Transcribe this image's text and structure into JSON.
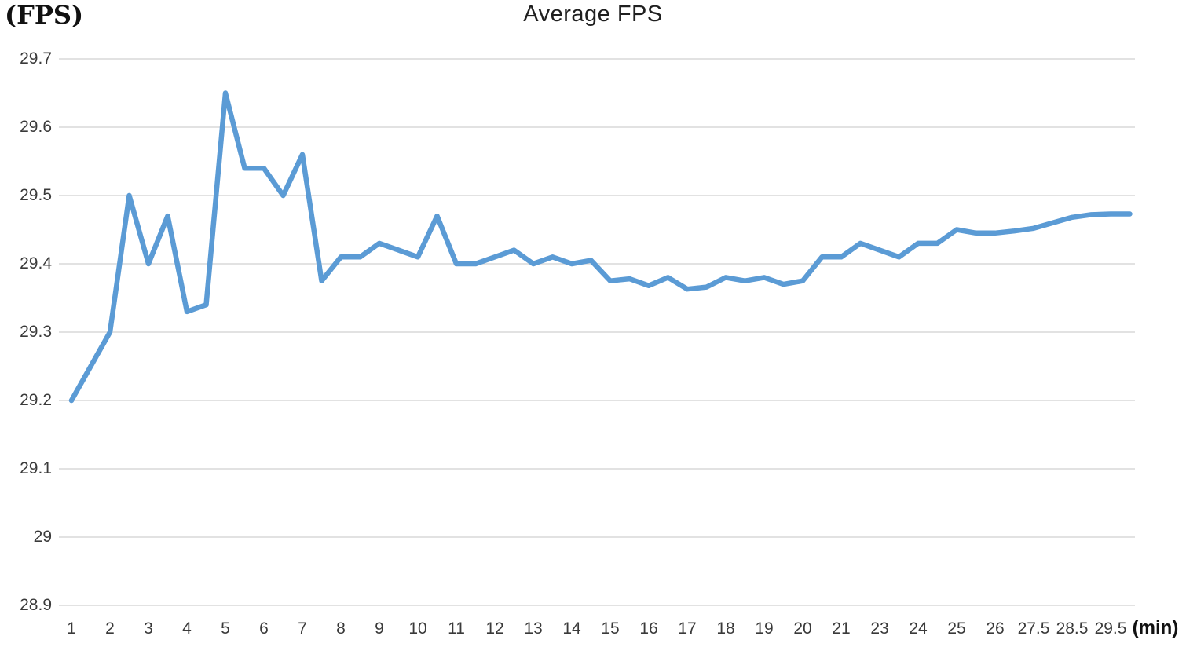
{
  "title": "Average FPS",
  "y_axis": {
    "unit_label": "(FPS)",
    "tick_labels": [
      "29.7",
      "29.6",
      "29.5",
      "29.4",
      "29.3",
      "29.2",
      "29.1",
      "29",
      "28.9"
    ],
    "max": 29.7,
    "min": 28.9,
    "step": 0.1
  },
  "x_axis": {
    "unit_label": "(min)",
    "tick_labels": [
      "1",
      "2",
      "3",
      "4",
      "5",
      "6",
      "7",
      "8",
      "9",
      "10",
      "11",
      "12",
      "13",
      "14",
      "15",
      "16",
      "17",
      "18",
      "19",
      "20",
      "21",
      "23",
      "24",
      "25",
      "26",
      "27.5",
      "28.5",
      "29.5"
    ]
  },
  "chart_data": {
    "type": "line",
    "title": "Average FPS",
    "xlabel": "(min)",
    "ylabel": "(FPS)",
    "ylim": [
      28.9,
      29.7
    ],
    "grid": "horizontal",
    "legend": "none",
    "x_tick_labels": [
      "1",
      "2",
      "3",
      "4",
      "5",
      "6",
      "7",
      "8",
      "9",
      "10",
      "11",
      "12",
      "13",
      "14",
      "15",
      "16",
      "17",
      "18",
      "19",
      "20",
      "21",
      "23",
      "24",
      "25",
      "26",
      "27.5",
      "28.5",
      "29.5"
    ],
    "points_per_label_interval": 2,
    "series": [
      {
        "name": "Average FPS",
        "color": "#5B9BD5",
        "x_slots": [
          1,
          1.5,
          2,
          2.5,
          3,
          3.5,
          4,
          4.5,
          5,
          5.5,
          6,
          6.5,
          7,
          7.5,
          8,
          8.5,
          9,
          9.5,
          10,
          10.5,
          11,
          11.5,
          12,
          12.5,
          13,
          13.5,
          14,
          14.5,
          15,
          15.5,
          16,
          16.5,
          17,
          17.5,
          18,
          18.5,
          19,
          19.5,
          20,
          20.5,
          21,
          21.5,
          22,
          22.5,
          23,
          23.5,
          24,
          24.5,
          25,
          25.5,
          26,
          26.5,
          27,
          27.5,
          28,
          28.5
        ],
        "values": [
          29.2,
          29.25,
          29.3,
          29.5,
          29.4,
          29.47,
          29.33,
          29.34,
          29.65,
          29.54,
          29.54,
          29.5,
          29.56,
          29.375,
          29.41,
          29.41,
          29.43,
          29.42,
          29.41,
          29.47,
          29.4,
          29.4,
          29.41,
          29.42,
          29.4,
          29.41,
          29.4,
          29.405,
          29.375,
          29.378,
          29.368,
          29.38,
          29.363,
          29.366,
          29.38,
          29.375,
          29.38,
          29.37,
          29.375,
          29.41,
          29.41,
          29.43,
          29.42,
          29.41,
          29.43,
          29.43,
          29.45,
          29.445,
          29.445,
          29.448,
          29.452,
          29.46,
          29.468,
          29.472,
          29.473,
          29.473
        ]
      }
    ]
  },
  "colors": {
    "line": "#5B9BD5",
    "gridline": "#d9d9d9",
    "tick_text": "#3a3a3a",
    "title_text": "#1f1f1f",
    "background": "#ffffff"
  }
}
